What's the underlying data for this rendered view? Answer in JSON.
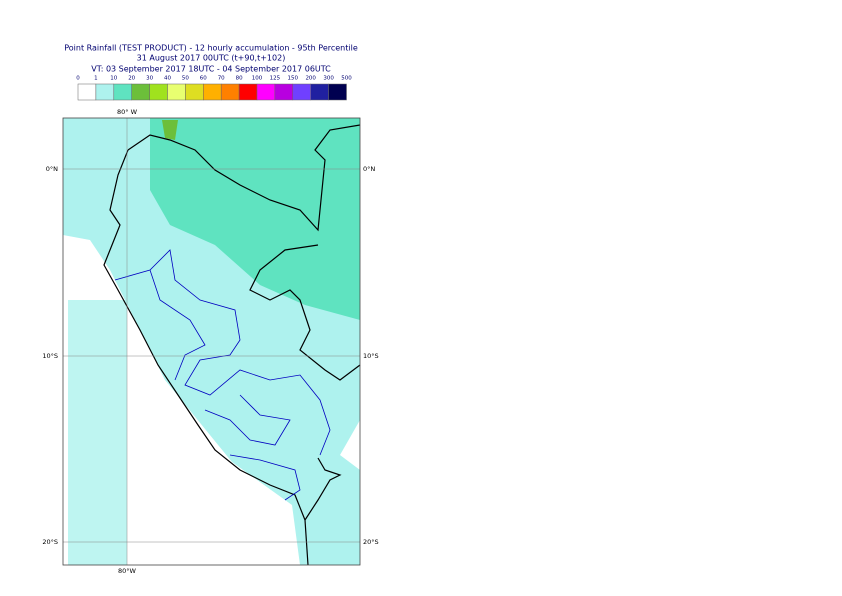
{
  "header": {
    "lines": [
      "Point Rainfall (TEST PRODUCT) - 12 hourly accumulation - 95th Percentile",
      "31 August 2017 00UTC (t+90,t+102)",
      "VT: 03 September 2017 18UTC - 04 September 2017 06UTC"
    ]
  },
  "legend": {
    "labels": [
      "0",
      "1",
      "10",
      "20",
      "30",
      "40",
      "50",
      "60",
      "70",
      "80",
      "100",
      "125",
      "150",
      "200",
      "300",
      "500"
    ],
    "colors": [
      "#ffffff",
      "#aef2ee",
      "#5fe3c0",
      "#6cbf3a",
      "#a0e21e",
      "#e8ff70",
      "#dede22",
      "#ffb000",
      "#ff8000",
      "#ff0000",
      "#ff00ff",
      "#b800e0",
      "#7040ff",
      "#2020a0",
      "#000050"
    ]
  },
  "map": {
    "lon_label_top": "80° W",
    "lon_label_bottom": "80°W",
    "lat_labels": [
      "0°N",
      "10°S",
      "20°S"
    ]
  }
}
